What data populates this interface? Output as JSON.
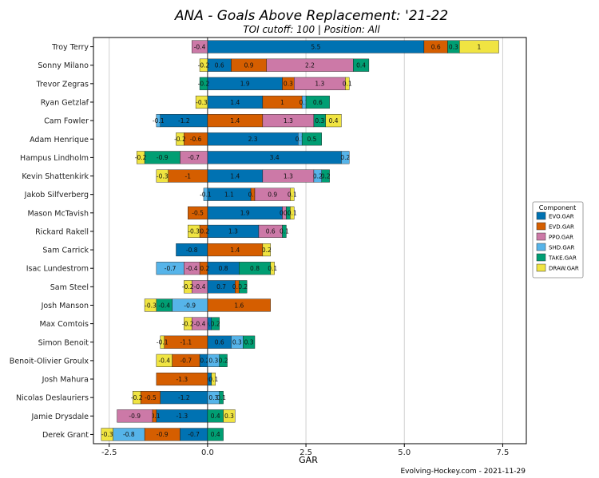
{
  "chart_data": {
    "type": "bar",
    "orientation": "horizontal-stacked",
    "title": "ANA - Goals Above Replacement: '21-22",
    "subtitle": "TOI cutoff: 100 | Position: All",
    "xlabel": "GAR",
    "ylabel": "",
    "xlim": [
      -2.5,
      7.5
    ],
    "xticks": [
      -2.5,
      0.0,
      2.5,
      5.0,
      7.5
    ],
    "xtick_labels": [
      "-2.5",
      "0.0",
      "2.5",
      "5.0",
      "7.5"
    ],
    "grid": "vertical",
    "legend_title": "Component",
    "legend_position": "right",
    "credit": "Evolving-Hockey.com - 2021-11-29",
    "components": [
      {
        "name": "EVO.GAR",
        "color": "#0072B2"
      },
      {
        "name": "EVD.GAR",
        "color": "#D55E00"
      },
      {
        "name": "PPO.GAR",
        "color": "#CC79A7"
      },
      {
        "name": "SHD.GAR",
        "color": "#56B4E9"
      },
      {
        "name": "TAKE.GAR",
        "color": "#009E73"
      },
      {
        "name": "DRAW.GAR",
        "color": "#F0E442"
      }
    ],
    "categories": [
      "Troy Terry",
      "Sonny Milano",
      "Trevor Zegras",
      "Ryan Getzlaf",
      "Cam Fowler",
      "Adam Henrique",
      "Hampus Lindholm",
      "Kevin Shattenkirk",
      "Jakob Silfverberg",
      "Mason McTavish",
      "Rickard Rakell",
      "Sam Carrick",
      "Isac Lundestrom",
      "Sam Steel",
      "Josh Manson",
      "Max Comtois",
      "Simon Benoit",
      "Benoit-Olivier Groulx",
      "Josh Mahura",
      "Nicolas Deslauriers",
      "Jamie Drysdale",
      "Derek Grant"
    ],
    "series": [
      {
        "name": "EVO.GAR",
        "values": [
          5.5,
          0.6,
          1.9,
          1.4,
          -1.2,
          2.3,
          3.4,
          1.4,
          1.1,
          1.9,
          1.3,
          -0.8,
          0.8,
          0.7,
          0.0,
          0.1,
          0.6,
          -0.2,
          0.1,
          -1.2,
          -1.3,
          -0.7
        ]
      },
      {
        "name": "EVD.GAR",
        "values": [
          0.6,
          0.9,
          0.3,
          1.0,
          1.4,
          -0.6,
          0.0,
          -1.0,
          0.1,
          -0.5,
          -0.2,
          1.4,
          -0.2,
          0.1,
          1.6,
          0.0,
          -1.1,
          -0.7,
          -1.3,
          -0.5,
          -0.1,
          -0.9
        ]
      },
      {
        "name": "PPO.GAR",
        "values": [
          -0.4,
          2.2,
          1.3,
          0.0,
          1.3,
          0.0,
          -0.7,
          1.3,
          0.9,
          0.1,
          0.6,
          0.0,
          -0.4,
          -0.4,
          0.0,
          -0.4,
          0.0,
          0.0,
          0.0,
          0.0,
          -0.9,
          0.0
        ]
      },
      {
        "name": "SHD.GAR",
        "values": [
          0.0,
          0.0,
          0.0,
          0.1,
          -0.1,
          0.1,
          0.2,
          0.2,
          -0.1,
          0.0,
          0.0,
          0.0,
          -0.7,
          0.0,
          -0.9,
          0.0,
          0.3,
          0.3,
          0.0,
          0.3,
          0.0,
          -0.8
        ]
      },
      {
        "name": "TAKE.GAR",
        "values": [
          0.3,
          0.4,
          -0.2,
          0.6,
          0.3,
          0.5,
          -0.9,
          0.2,
          -0.0,
          0.1,
          0.1,
          0.0,
          0.8,
          0.2,
          -0.4,
          0.2,
          0.3,
          0.2,
          0.0,
          0.1,
          0.4,
          0.4
        ]
      },
      {
        "name": "DRAW.GAR",
        "values": [
          1.0,
          -0.2,
          0.1,
          -0.3,
          0.4,
          -0.2,
          -0.2,
          -0.3,
          0.1,
          0.1,
          -0.3,
          0.2,
          0.1,
          -0.2,
          -0.3,
          -0.2,
          -0.1,
          -0.4,
          0.1,
          -0.2,
          0.3,
          -0.3
        ]
      }
    ],
    "data_labels": [
      [
        "5.5",
        "0.6",
        "-0.4",
        "",
        "0.3",
        "1"
      ],
      [
        "0.6",
        "0.9",
        "2.2",
        "",
        "0.4",
        "-0.2"
      ],
      [
        "1.9",
        "0.3",
        "1.3",
        "",
        "-0.2",
        "0.1"
      ],
      [
        "1.4",
        "1",
        "",
        "0.1",
        "0.6",
        "-0.3"
      ],
      [
        "-1.2",
        "1.4",
        "1.3",
        "-0.1",
        "0.3",
        "0.4"
      ],
      [
        "2.3",
        "-0.6",
        "",
        "0.1",
        "0.5",
        "-0.2"
      ],
      [
        "3.4",
        "",
        "-0.7",
        "0.2",
        "-0.9",
        "-0.2"
      ],
      [
        "1.4",
        "-1",
        "1.3",
        "0.2",
        "0.2",
        "-0.3"
      ],
      [
        "1.1",
        "0.1",
        "0.9",
        "-0.1",
        "-0",
        "0.1"
      ],
      [
        "1.9",
        "-0.5",
        "0.1",
        "",
        "0.1",
        "0.1"
      ],
      [
        "1.3",
        "-0.2",
        "0.6",
        "",
        "0.1",
        "-0.3"
      ],
      [
        "-0.8",
        "1.4",
        "",
        "",
        "",
        "0.2"
      ],
      [
        "0.8",
        "-0.2",
        "-0.4",
        "-0.7",
        "0.8",
        "0.1"
      ],
      [
        "0.7",
        "0.1",
        "-0.4",
        "",
        "0.2",
        "-0.2"
      ],
      [
        "0",
        "1.6",
        "",
        "-0.9",
        "-0.4",
        "-0.3"
      ],
      [
        "0.1",
        "0",
        "-0.4",
        "",
        "0.2",
        "-0.2"
      ],
      [
        "0.6",
        "-1.1",
        "",
        "0.3",
        "0.3",
        "-0.1"
      ],
      [
        "-0.2",
        "-0.7",
        "",
        "0.3",
        "0.2",
        "-0.4"
      ],
      [
        "0.1",
        "-1.3",
        "",
        "",
        "",
        "0.1"
      ],
      [
        "-1.2",
        "-0.5",
        "",
        "0.3",
        "0.1",
        "-0.2"
      ],
      [
        "-1.3",
        "-0.1",
        "-0.9",
        "",
        "0.4",
        "0.3"
      ],
      [
        "-0.7",
        "-0.9",
        "",
        "-0.8",
        "0.4",
        "-0.3"
      ]
    ]
  }
}
